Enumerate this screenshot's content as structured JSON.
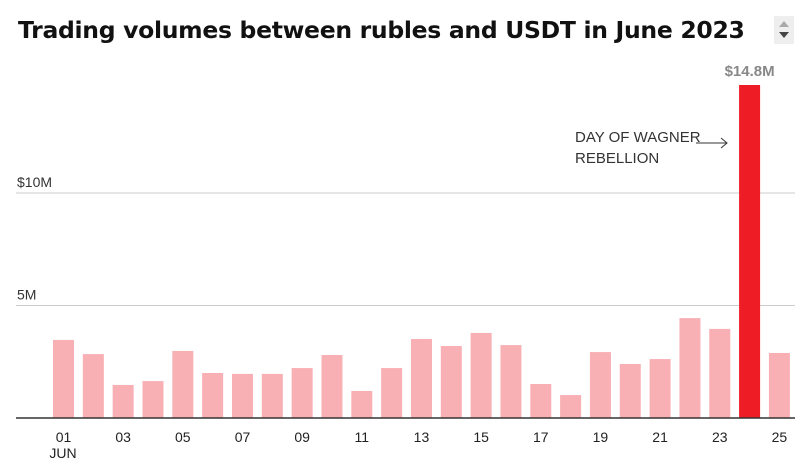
{
  "chart_data": {
    "type": "bar",
    "title": "Trading volumes between rubles and USDT in June 2023",
    "categories": [
      "01",
      "02",
      "03",
      "04",
      "05",
      "06",
      "07",
      "08",
      "09",
      "10",
      "11",
      "12",
      "13",
      "14",
      "15",
      "16",
      "17",
      "18",
      "19",
      "20",
      "21",
      "22",
      "23",
      "24",
      "25"
    ],
    "values": [
      3.47,
      2.84,
      1.47,
      1.64,
      2.98,
      2.0,
      1.96,
      1.96,
      2.22,
      2.8,
      1.2,
      2.22,
      3.51,
      3.2,
      3.78,
      3.24,
      1.51,
      1.02,
      2.93,
      2.4,
      2.62,
      4.44,
      3.96,
      14.8,
      2.89
    ],
    "unit": "million USD",
    "x_tick_labels": [
      "01",
      "03",
      "05",
      "07",
      "09",
      "11",
      "13",
      "15",
      "17",
      "19",
      "21",
      "23",
      "25"
    ],
    "x_sublabel": "JUN",
    "y_ticks": [
      {
        "value": 5,
        "label": "5M"
      },
      {
        "value": 10,
        "label": "$10M"
      }
    ],
    "ylim": [
      0,
      15
    ],
    "grid": true,
    "highlight": {
      "category": "24",
      "value_label": "$14.8M",
      "annotation_line1": "DAY OF WAGNER",
      "annotation_line2": "REBELLION"
    },
    "colors": {
      "bar": "#f8b0b4",
      "highlight": "#ee1c25",
      "value_label": "#888888"
    }
  }
}
